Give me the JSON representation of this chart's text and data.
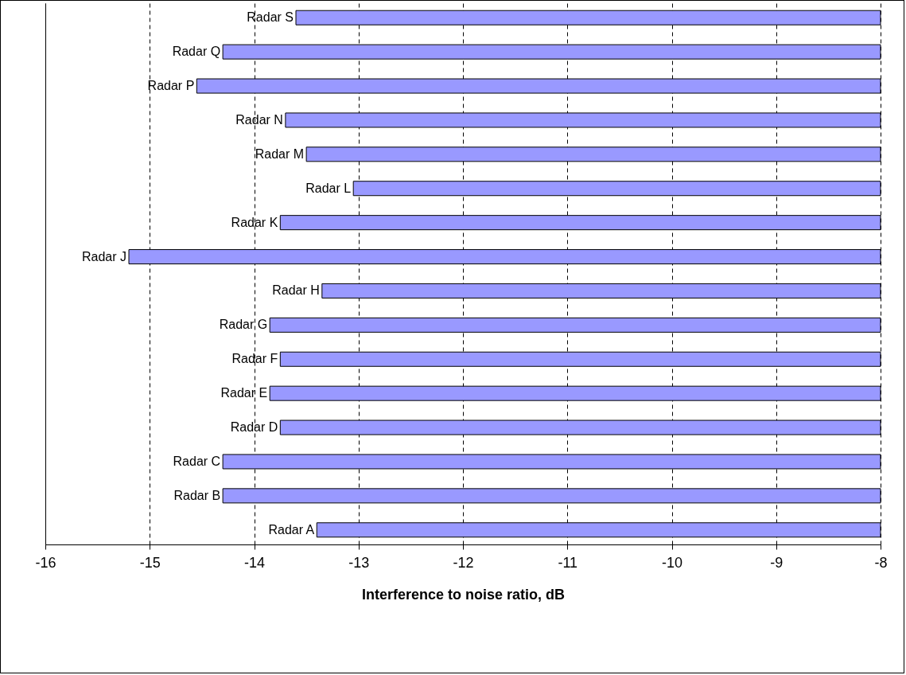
{
  "chart_data": {
    "type": "bar",
    "orientation": "horizontal",
    "xlabel": "Interference to noise ratio, dB",
    "categories": [
      "Radar S",
      "Radar Q",
      "Radar P",
      "Radar N",
      "Radar M",
      "Radar L",
      "Radar K",
      "Radar J",
      "Radar H",
      "Radar G",
      "Radar F",
      "Radar E",
      "Radar D",
      "Radar C",
      "Radar B",
      "Radar A"
    ],
    "values": [
      -13.6,
      -14.3,
      -14.55,
      -13.7,
      -13.5,
      -13.05,
      -13.75,
      -15.2,
      -13.35,
      -13.85,
      -13.75,
      -13.85,
      -13.75,
      -14.3,
      -14.3,
      -13.4
    ],
    "color": "#9999ff",
    "xlim": [
      -16,
      -8
    ],
    "xticks": [
      -16,
      -15,
      -14,
      -13,
      -12,
      -11,
      -10,
      -9,
      -8
    ],
    "grid": "x"
  }
}
